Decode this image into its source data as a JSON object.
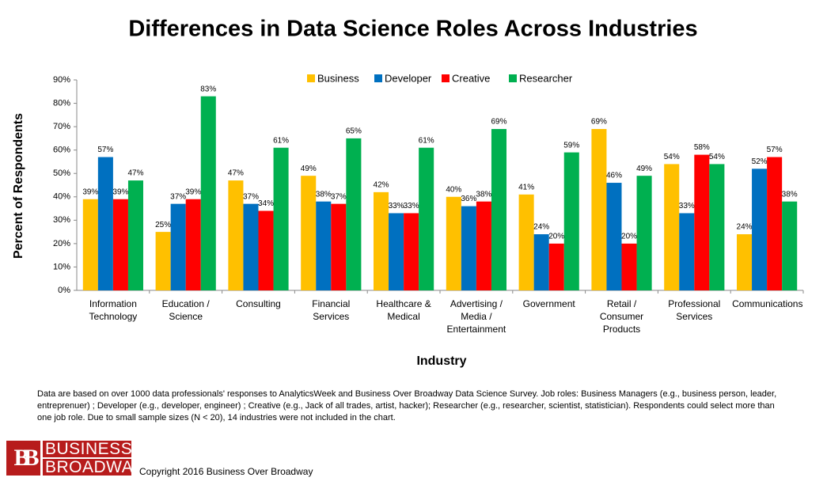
{
  "chart_data": {
    "type": "bar",
    "title": "Differences in Data Science Roles Across Industries",
    "x_label": "Industry",
    "y_label": "Percent of Respondents",
    "categories": [
      "Information Technology",
      "Education / Science",
      "Consulting",
      "Financial Services",
      "Healthcare & Medical",
      "Advertising / Media / Entertainment",
      "Government",
      "Retail / Consumer Products",
      "Professional Services",
      "Communications"
    ],
    "series": [
      {
        "name": "Business",
        "color": "#ffc000",
        "values": [
          39,
          25,
          47,
          49,
          42,
          40,
          41,
          69,
          54,
          24
        ],
        "value_labels": [
          "39%",
          "25%",
          "47%",
          "49%",
          "42%",
          "40%",
          "41%",
          "69%",
          "54%",
          "24%"
        ]
      },
      {
        "name": "Developer",
        "color": "#0070c0",
        "values": [
          57,
          37,
          37,
          38,
          33,
          36,
          24,
          46,
          33,
          52
        ],
        "value_labels": [
          "57%",
          "37%",
          "37%",
          "38%",
          "33%",
          "36%",
          "24%",
          "46%",
          "33%",
          "52%"
        ]
      },
      {
        "name": "Creative",
        "color": "#ff0000",
        "values": [
          39,
          39,
          34,
          37,
          33,
          38,
          20,
          20,
          58,
          57
        ],
        "value_labels": [
          "39%",
          "39%",
          "34%",
          "37%",
          "33%",
          "38%",
          "20%",
          "20%",
          "58%",
          "57%"
        ]
      },
      {
        "name": "Researcher",
        "color": "#00b050",
        "values": [
          47,
          83,
          61,
          65,
          61,
          69,
          59,
          49,
          54,
          38
        ],
        "value_labels": [
          "47%",
          "83%",
          "61%",
          "65%",
          "61%",
          "69%",
          "59%",
          "49%",
          "54%",
          "38%"
        ]
      }
    ],
    "ylim": [
      0,
      90
    ],
    "yticks": [
      {
        "value": 0,
        "label": "0%"
      },
      {
        "value": 10,
        "label": "10%"
      },
      {
        "value": 20,
        "label": "20%"
      },
      {
        "value": 30,
        "label": "30%"
      },
      {
        "value": 40,
        "label": "40%"
      },
      {
        "value": 50,
        "label": "50%"
      },
      {
        "value": 60,
        "label": "60%"
      },
      {
        "value": 70,
        "label": "70%"
      },
      {
        "value": 80,
        "label": "80%"
      },
      {
        "value": 90,
        "label": "90%"
      }
    ],
    "grid": false,
    "legend": "top"
  },
  "footnote": "Data are based on over 1000 data professionals' responses to AnalyticsWeek and Business Over Broadway Data Science Survey. Job roles: Business Managers (e.g., business person, leader, entreprenuer) ; Developer (e.g., developer, engineer) ; Creative (e.g., Jack of all trades, artist, hacker); Researcher (e.g., researcher, scientist, statistician). Respondents could select more than one job role.  Due to small sample sizes (N < 20), 14 industries were not included in the chart.",
  "logo": {
    "mark": "BB",
    "lines": [
      "BUSINESS",
      "BROADWAY"
    ]
  },
  "copyright": "Copyright 2016 Business Over Broadway"
}
